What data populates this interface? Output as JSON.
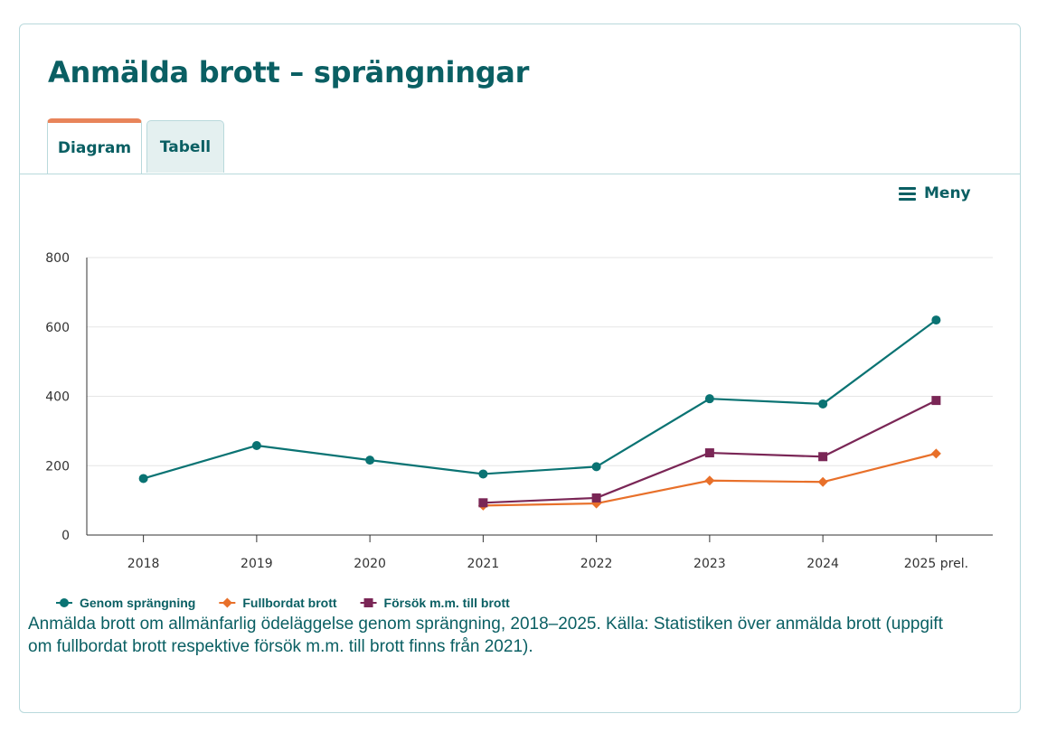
{
  "title": "Anmälda brott – sprängningar",
  "tabs": [
    {
      "label": "Diagram",
      "active": true
    },
    {
      "label": "Tabell",
      "active": false
    }
  ],
  "menu": {
    "label": "Meny",
    "icon": "hamburger-menu-icon"
  },
  "caption": "Anmälda brott om allmänfarlig ödeläggelse genom sprängning, 2018–2025. Källa: Statistiken över anmälda brott (uppgift om fullbordat brott respektive försök m.m. till brott finns från 2021).",
  "colors": {
    "brand": "#0a5f63",
    "accent_tab": "#e8845a"
  },
  "chart_data": {
    "type": "line",
    "categories": [
      "2018",
      "2019",
      "2020",
      "2021",
      "2022",
      "2023",
      "2024",
      "2025 prel."
    ],
    "ylim": [
      0,
      800
    ],
    "yticks": [
      0,
      200,
      400,
      600,
      800
    ],
    "grid": true,
    "legend": "bottom-left",
    "series": [
      {
        "name": "Genom sprängning",
        "color": "#0a7373",
        "marker": "circle",
        "values": [
          163,
          258,
          216,
          176,
          197,
          393,
          378,
          620
        ]
      },
      {
        "name": "Fullbordat brott",
        "color": "#e8702a",
        "marker": "diamond",
        "values": [
          null,
          null,
          null,
          85,
          91,
          157,
          153,
          235
        ]
      },
      {
        "name": "Försök m.m. till brott",
        "color": "#7a2656",
        "marker": "square",
        "values": [
          null,
          null,
          null,
          93,
          107,
          237,
          226,
          388
        ]
      }
    ]
  }
}
